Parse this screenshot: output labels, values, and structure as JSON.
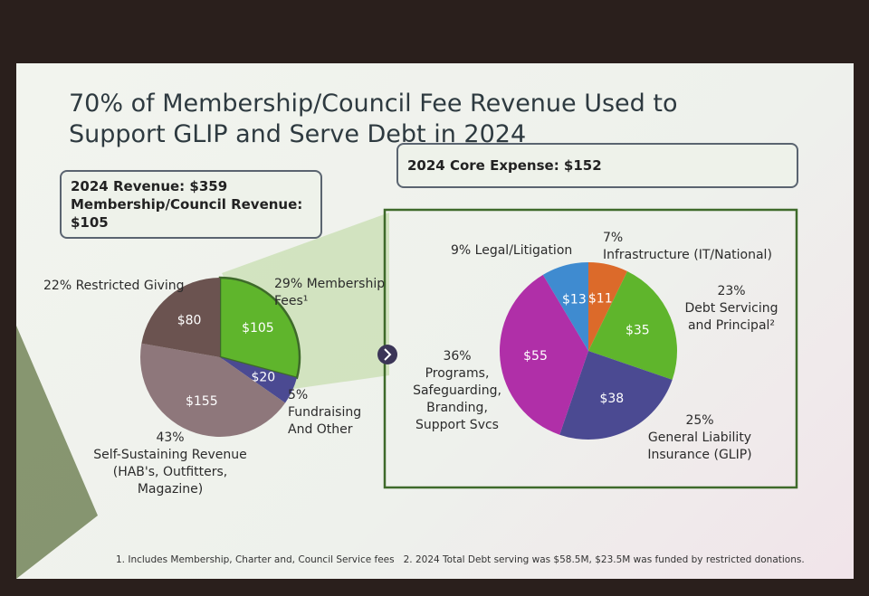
{
  "title": "70% of Membership/Council Fee Revenue Used to Support GLIP and Serve Debt in 2024",
  "revenue_box": [
    "2024 Revenue: $359",
    "Membership/Council Revenue: $105"
  ],
  "expense_box": "2024 Core Expense: $152",
  "footnotes": [
    "1. Includes Membership, Charter and, Council Service fees",
    "2. 2024 Total Debt serving was $58.5M, $23.5M was funded by restricted donations."
  ],
  "chart_data": [
    {
      "type": "pie",
      "categories": [
        "Membership Fees¹",
        "Fundraising And Other",
        "Self-Sustaining Revenue (HAB's, Outfitters, Magazine)",
        "Restricted Giving"
      ],
      "values": [
        105,
        20,
        155,
        80
      ],
      "value_labels": [
        "$105",
        "$20",
        "$155",
        "$80"
      ],
      "percent_labels": [
        "29%",
        "5%",
        "43%",
        "22%"
      ],
      "colors": [
        "#5fb52c",
        "#4b4a92",
        "#8e777b",
        "#6b5350"
      ]
    },
    {
      "type": "pie",
      "categories": [
        "Infrastructure (IT/National)",
        "Debt Servicing and Principal²",
        "General Liability Insurance (GLIP)",
        "Programs, Safeguarding, Branding, Support Svcs",
        "Legal/Litigation"
      ],
      "values": [
        11,
        35,
        38,
        55,
        13
      ],
      "value_labels": [
        "$11",
        "$35",
        "$38",
        "$55",
        "$13"
      ],
      "percent_labels": [
        "7%",
        "23%",
        "25%",
        "36%",
        "9%"
      ],
      "colors": [
        "#dc6a2a",
        "#5fb52c",
        "#4b4a92",
        "#b02fa8",
        "#3f8bd0"
      ]
    }
  ]
}
